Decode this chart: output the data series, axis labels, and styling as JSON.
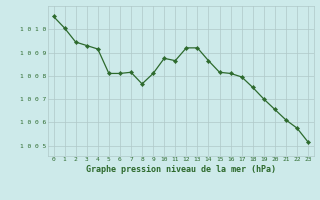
{
  "x": [
    0,
    1,
    2,
    3,
    4,
    5,
    6,
    7,
    8,
    9,
    10,
    11,
    12,
    13,
    14,
    15,
    16,
    17,
    18,
    19,
    20,
    21,
    22,
    23
  ],
  "y": [
    1010.55,
    1010.05,
    1009.45,
    1009.3,
    1009.15,
    1008.1,
    1008.1,
    1008.15,
    1007.65,
    1008.1,
    1008.75,
    1008.65,
    1009.2,
    1009.2,
    1008.65,
    1008.15,
    1008.1,
    1007.95,
    1007.5,
    1007.0,
    1006.55,
    1006.1,
    1005.75,
    1005.15
  ],
  "line_color": "#2d6a2d",
  "marker": "D",
  "marker_size": 2.2,
  "bg_color": "#cdeaea",
  "grid_color": "#b0c8c8",
  "xlabel": "Graphe pression niveau de la mer (hPa)",
  "xlabel_color": "#2d6a2d",
  "tick_color": "#2d6a2d",
  "ylim": [
    1004.55,
    1011.0
  ],
  "xlim": [
    -0.5,
    23.5
  ],
  "yticks": [
    1005,
    1006,
    1007,
    1008,
    1009,
    1010
  ],
  "xticks": [
    0,
    1,
    2,
    3,
    4,
    5,
    6,
    7,
    8,
    9,
    10,
    11,
    12,
    13,
    14,
    15,
    16,
    17,
    18,
    19,
    20,
    21,
    22,
    23
  ]
}
